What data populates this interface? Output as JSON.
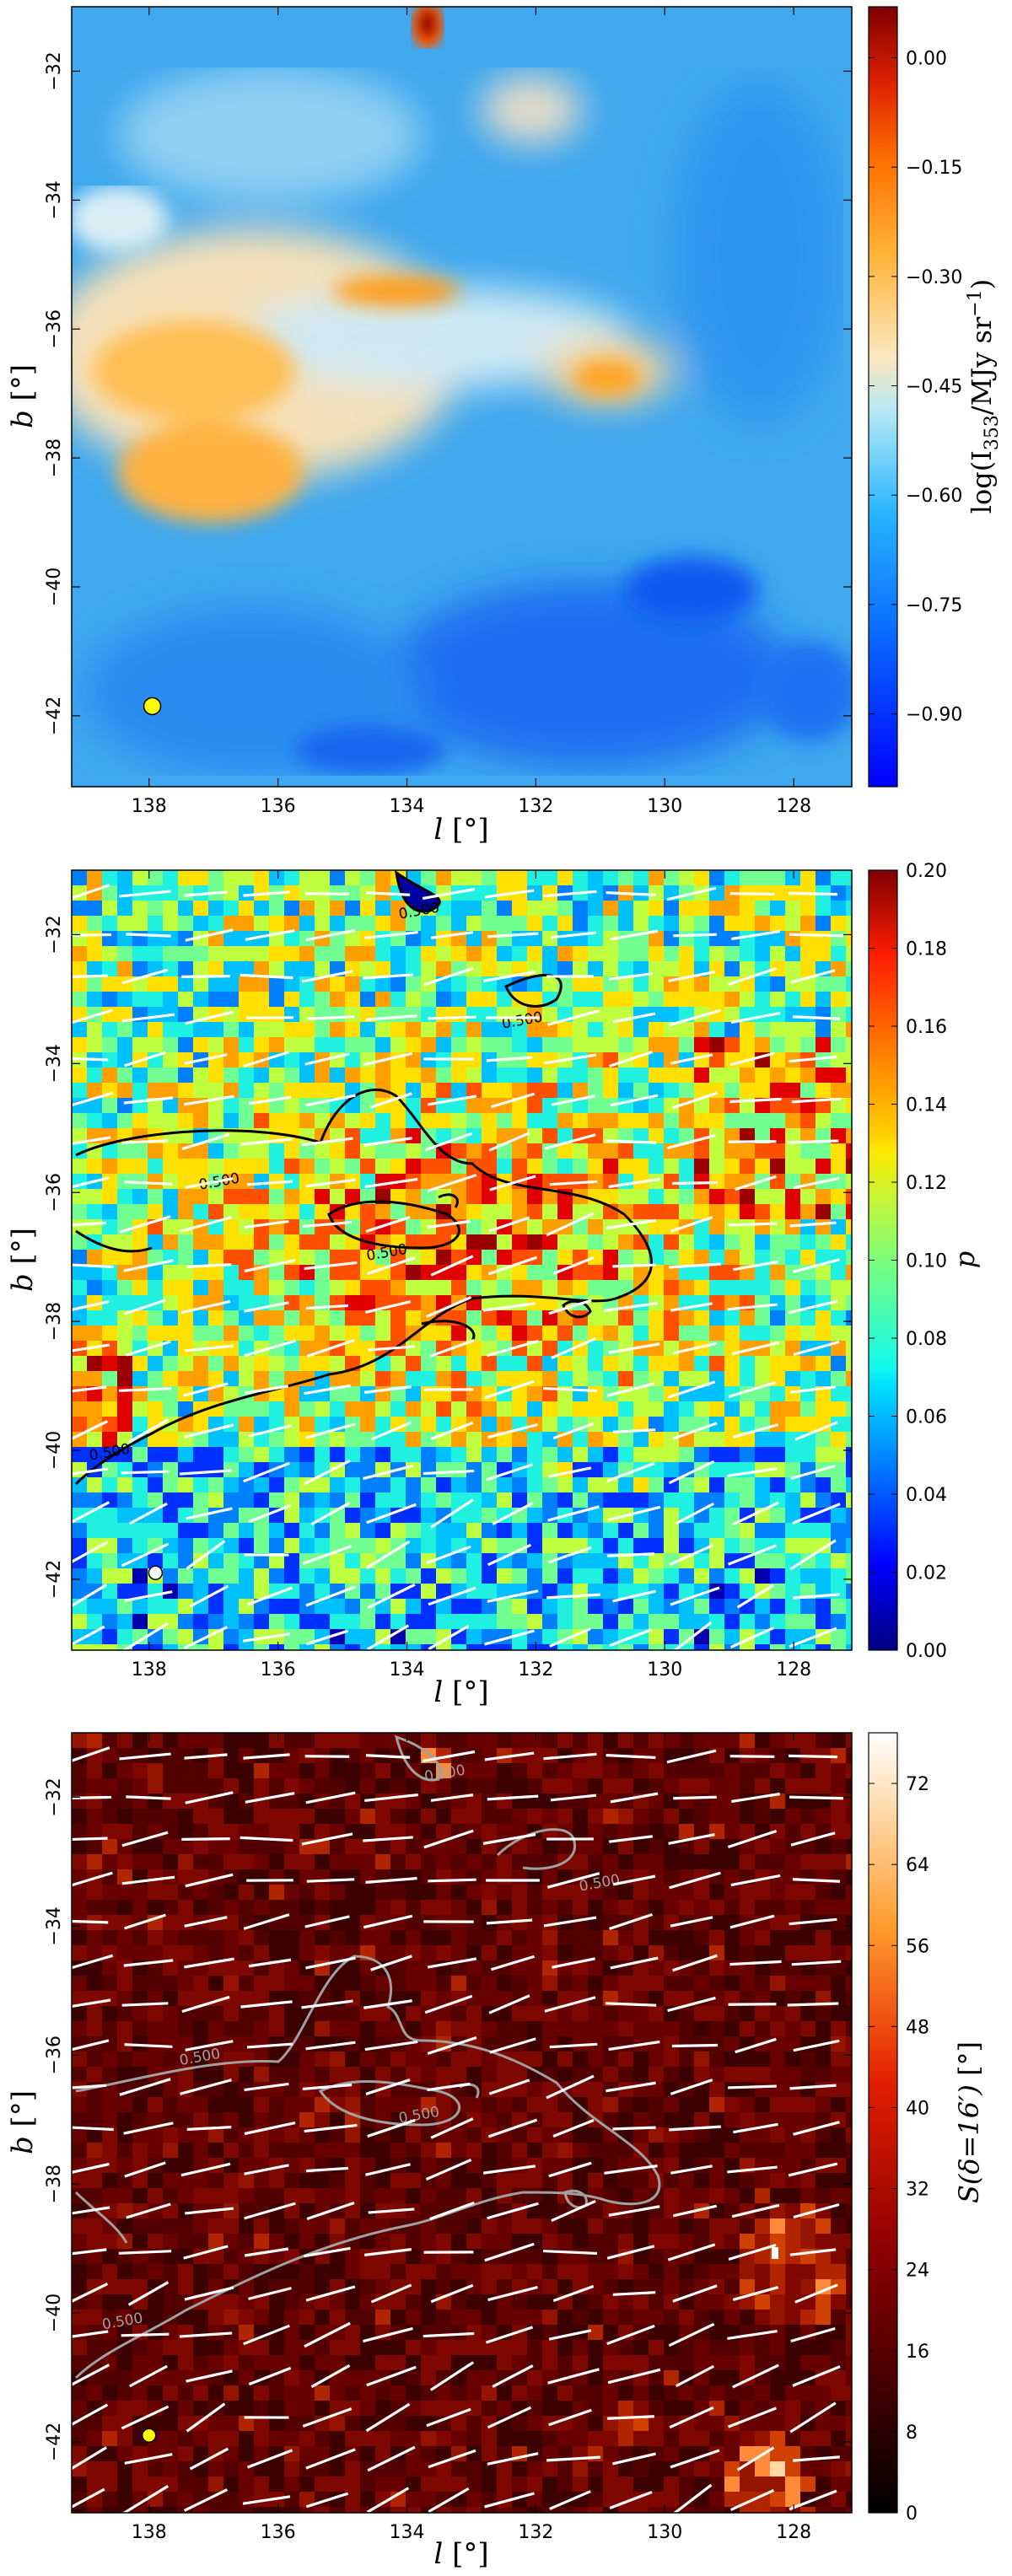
{
  "chart_data": [
    {
      "type": "heatmap",
      "xlabel_sym": "l",
      "xlabel_unit": "[°]",
      "ylabel_sym": "b",
      "ylabel_unit": "[°]",
      "xlim": [
        139.2,
        127.1
      ],
      "ylim": [
        -43.1,
        -31.0
      ],
      "x_ticks": [
        "138",
        "136",
        "134",
        "132",
        "130",
        "128"
      ],
      "x_tick_values": [
        138,
        136,
        134,
        132,
        130,
        128
      ],
      "y_ticks": [
        "−32",
        "−34",
        "−36",
        "−38",
        "−40",
        "−42"
      ],
      "y_tick_values": [
        -32,
        -34,
        -36,
        -38,
        -40,
        -42
      ],
      "colorbar": {
        "label_prefix": "log(I",
        "label_sub": "353",
        "label_mid": "/MJy sr",
        "label_sup": "−1",
        "label_suffix": ")",
        "range": [
          -1.0,
          0.07
        ],
        "ticks": [
          "0.00",
          "−0.15",
          "−0.30",
          "−0.45",
          "−0.60",
          "−0.75",
          "−0.90"
        ],
        "tick_values": [
          0.0,
          -0.15,
          -0.3,
          -0.45,
          -0.6,
          -0.75,
          -0.9
        ],
        "colormap": "jet"
      },
      "marker": {
        "l": 137.95,
        "b": -41.85,
        "color": "#ffff00"
      }
    },
    {
      "type": "heatmap",
      "xlabel_sym": "l",
      "xlabel_unit": "[°]",
      "ylabel_sym": "b",
      "ylabel_unit": "[°]",
      "xlim": [
        139.2,
        127.1
      ],
      "ylim": [
        -43.1,
        -31.0
      ],
      "x_ticks": [
        "138",
        "136",
        "134",
        "132",
        "130",
        "128"
      ],
      "x_tick_values": [
        138,
        136,
        134,
        132,
        130,
        128
      ],
      "y_ticks": [
        "−32",
        "−34",
        "−36",
        "−38",
        "−40",
        "−42"
      ],
      "y_tick_values": [
        -32,
        -34,
        -36,
        -38,
        -40,
        -42
      ],
      "colorbar": {
        "label": "p",
        "range": [
          0.0,
          0.2
        ],
        "ticks": [
          "0.20",
          "0.18",
          "0.16",
          "0.14",
          "0.12",
          "0.10",
          "0.08",
          "0.06",
          "0.04",
          "0.02",
          "0.00"
        ],
        "tick_values": [
          0.2,
          0.18,
          0.16,
          0.14,
          0.12,
          0.1,
          0.08,
          0.06,
          0.04,
          0.02,
          0.0
        ],
        "colormap": "jet"
      },
      "contour_level": "0.500",
      "contour_color": "#000000",
      "contour_label_positions": [
        [
          136.9,
          -35.9
        ],
        [
          132.2,
          -33.4
        ],
        [
          133.8,
          -31.7
        ],
        [
          134.3,
          -37.0
        ],
        [
          138.6,
          -40.1
        ]
      ],
      "vector_color": "#ffffff",
      "marker": {
        "l": 137.9,
        "b": -41.9,
        "color": "#ffffff"
      }
    },
    {
      "type": "heatmap",
      "xlabel_sym": "l",
      "xlabel_unit": "[°]",
      "ylabel_sym": "b",
      "ylabel_unit": "[°]",
      "xlim": [
        139.2,
        127.1
      ],
      "ylim": [
        -43.1,
        -31.0
      ],
      "x_ticks": [
        "138",
        "136",
        "134",
        "132",
        "130",
        "128"
      ],
      "x_tick_values": [
        138,
        136,
        134,
        132,
        130,
        128
      ],
      "y_ticks": [
        "−32",
        "−34",
        "−36",
        "−38",
        "−40",
        "−42"
      ],
      "y_tick_values": [
        -32,
        -34,
        -36,
        -38,
        -40,
        -42
      ],
      "colorbar": {
        "label_prefix": "S(δ=16′) ",
        "label_unit": "[°]",
        "range": [
          0,
          77
        ],
        "ticks": [
          "72",
          "64",
          "56",
          "48",
          "40",
          "32",
          "24",
          "16",
          "8",
          "0"
        ],
        "tick_values": [
          72,
          64,
          56,
          48,
          40,
          32,
          24,
          16,
          8,
          0
        ],
        "colormap": "gist_heat"
      },
      "contour_level": "0.500",
      "contour_color": "#a0a0a0",
      "contour_label_positions": [
        [
          133.4,
          -31.7
        ],
        [
          131.0,
          -33.4
        ],
        [
          137.2,
          -36.1
        ],
        [
          133.8,
          -37.0
        ],
        [
          138.4,
          -40.2
        ]
      ],
      "vector_color": "#ffffff",
      "marker": {
        "l": 138.0,
        "b": -41.9,
        "color": "#ffff00"
      }
    }
  ]
}
